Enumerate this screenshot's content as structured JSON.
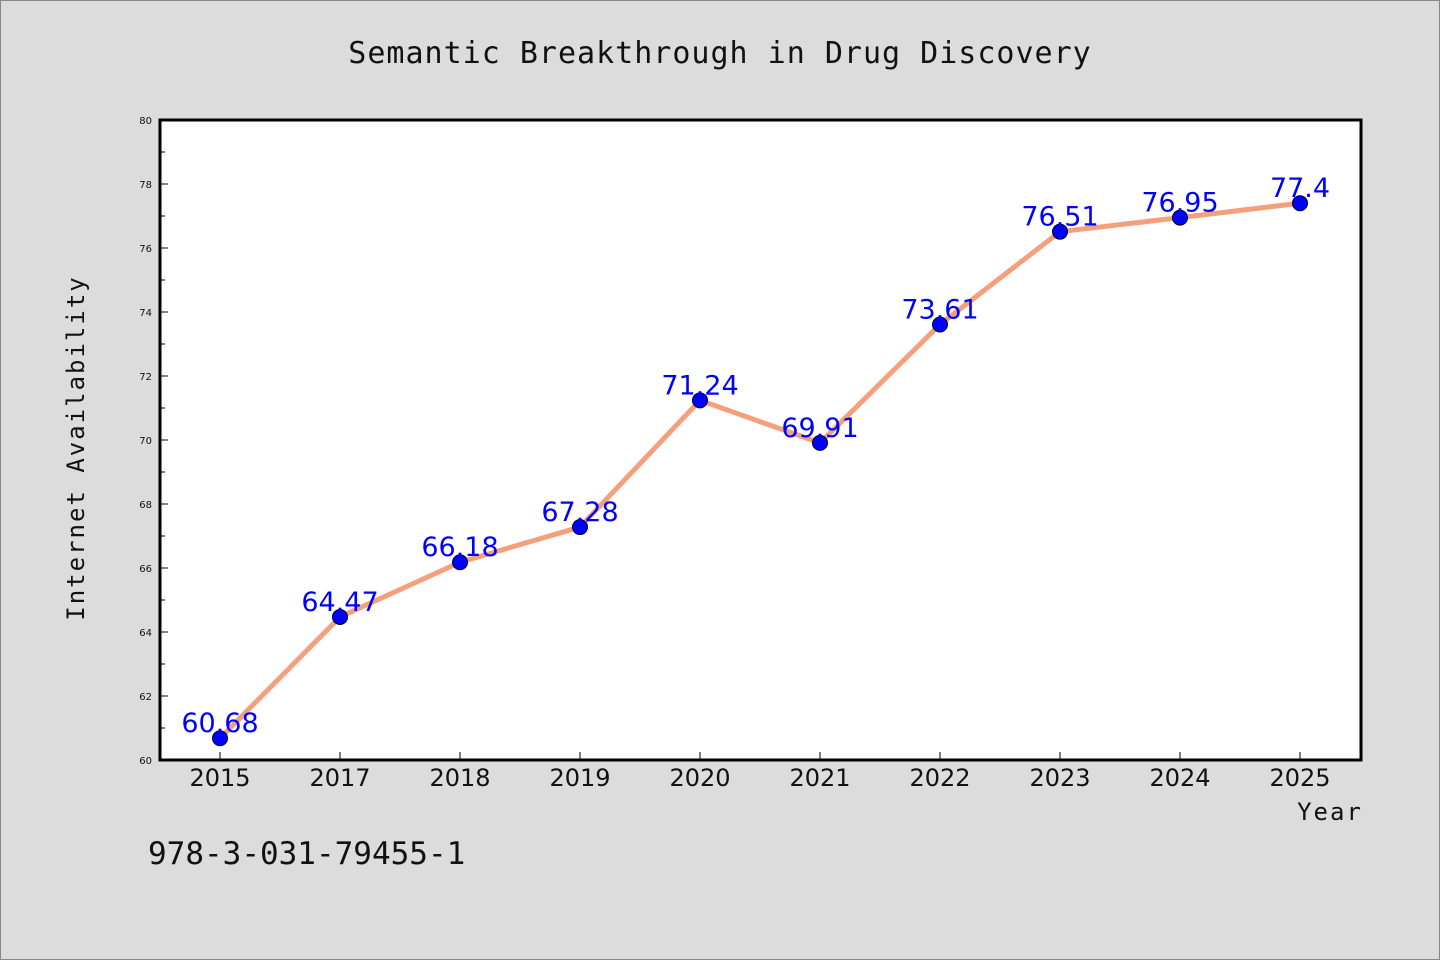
{
  "chart_data": {
    "type": "line",
    "title": "Semantic Breakthrough in Drug Discovery",
    "xlabel": "Year",
    "ylabel": "Internet Availability",
    "categories": [
      "2015",
      "2017",
      "2018",
      "2019",
      "2020",
      "2021",
      "2022",
      "2023",
      "2024",
      "2025"
    ],
    "series": [
      {
        "values": [
          60.68,
          64.47,
          66.18,
          67.28,
          71.24,
          69.91,
          73.61,
          76.51,
          76.95,
          77.4
        ],
        "labels": [
          "60.68",
          "64.47",
          "66.18",
          "67.28",
          "71.24",
          "69.91",
          "73.61",
          "76.51",
          "76.95",
          "77.4"
        ],
        "line_color": "#f4a07c",
        "marker_color": "#0000ff"
      }
    ],
    "ylim": [
      60,
      80
    ],
    "yticks": [
      "60",
      "62",
      "64",
      "66",
      "68",
      "70",
      "72",
      "74",
      "76",
      "78",
      "80"
    ],
    "grid": false,
    "legend": "none"
  },
  "footer": {
    "isbn": "978-3-031-79455-1"
  },
  "colors": {
    "background": "#dcdcdc",
    "plot_background": "#ffffff",
    "label_color": "#0000ff"
  }
}
